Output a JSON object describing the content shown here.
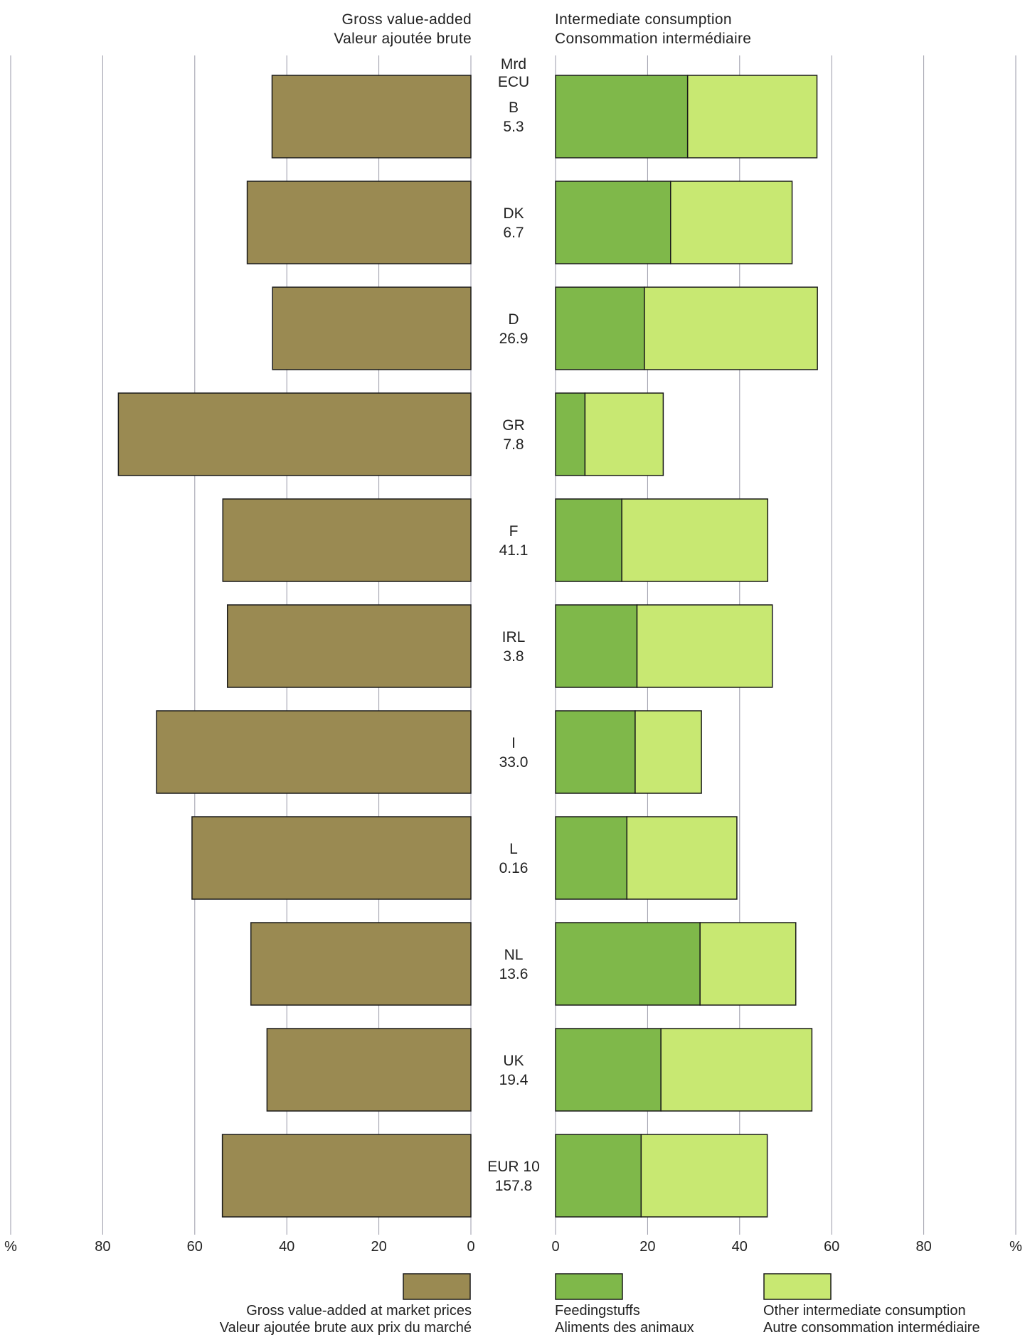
{
  "headers": {
    "left": [
      "Gross value-added",
      "Valeur ajoutée brute"
    ],
    "right": [
      "Intermediate consumption",
      "Consommation intermédiaire"
    ],
    "unit": [
      "Mrd",
      "ECU"
    ]
  },
  "legend": [
    {
      "key": "gva",
      "lines": [
        "Gross value-added  at market prices",
        "Valeur ajoutée brute  aux prix du marché"
      ],
      "color": "#9a8a52"
    },
    {
      "key": "feed",
      "lines": [
        "Feedingstuffs",
        "Aliments des animaux"
      ],
      "color": "#7fb84a"
    },
    {
      "key": "other",
      "lines": [
        "Other intermediate consumption",
        "Autre consommation intermédiaire"
      ],
      "color": "#c8e872"
    }
  ],
  "colors": {
    "gva": "#9a8a52",
    "feed": "#7fb84a",
    "other": "#c8e872",
    "grid": "#9a9aa8"
  },
  "chart_data": {
    "type": "bar",
    "orientation": "horizontal",
    "categories": [
      "B",
      "DK",
      "D",
      "GR",
      "F",
      "IRL",
      "I",
      "L",
      "NL",
      "UK",
      "EUR 10"
    ],
    "category_values_label": [
      "5.3",
      "6.7",
      "26.9",
      "7.8",
      "41.1",
      "3.8",
      "33.0",
      "0.16",
      "13.6",
      "19.4",
      "157.8"
    ],
    "left_axis": {
      "ticks": [
        "%",
        "80",
        "60",
        "40",
        "20",
        "0"
      ],
      "tick_values": [
        100,
        80,
        60,
        40,
        20,
        0
      ],
      "range": [
        0,
        100
      ]
    },
    "right_axis": {
      "ticks": [
        "0",
        "20",
        "40",
        "60",
        "80",
        "%"
      ],
      "tick_values": [
        0,
        20,
        40,
        60,
        80,
        100
      ],
      "range": [
        0,
        100
      ]
    },
    "series": [
      {
        "name": "Gross value-added  at market prices",
        "side": "left",
        "values": [
          43.2,
          48.6,
          43.1,
          76.6,
          53.9,
          52.9,
          68.3,
          60.6,
          47.8,
          44.3,
          54.0
        ]
      },
      {
        "name": "Feedingstuffs",
        "side": "right",
        "values": [
          28.7,
          25.0,
          19.3,
          6.4,
          14.4,
          17.7,
          17.3,
          15.5,
          31.4,
          22.9,
          18.6
        ]
      },
      {
        "name": "Other intermediate consumption",
        "side": "right",
        "values": [
          28.1,
          26.4,
          37.6,
          17.0,
          31.7,
          29.4,
          14.4,
          23.9,
          20.8,
          32.8,
          27.4
        ]
      }
    ],
    "grid": true
  }
}
